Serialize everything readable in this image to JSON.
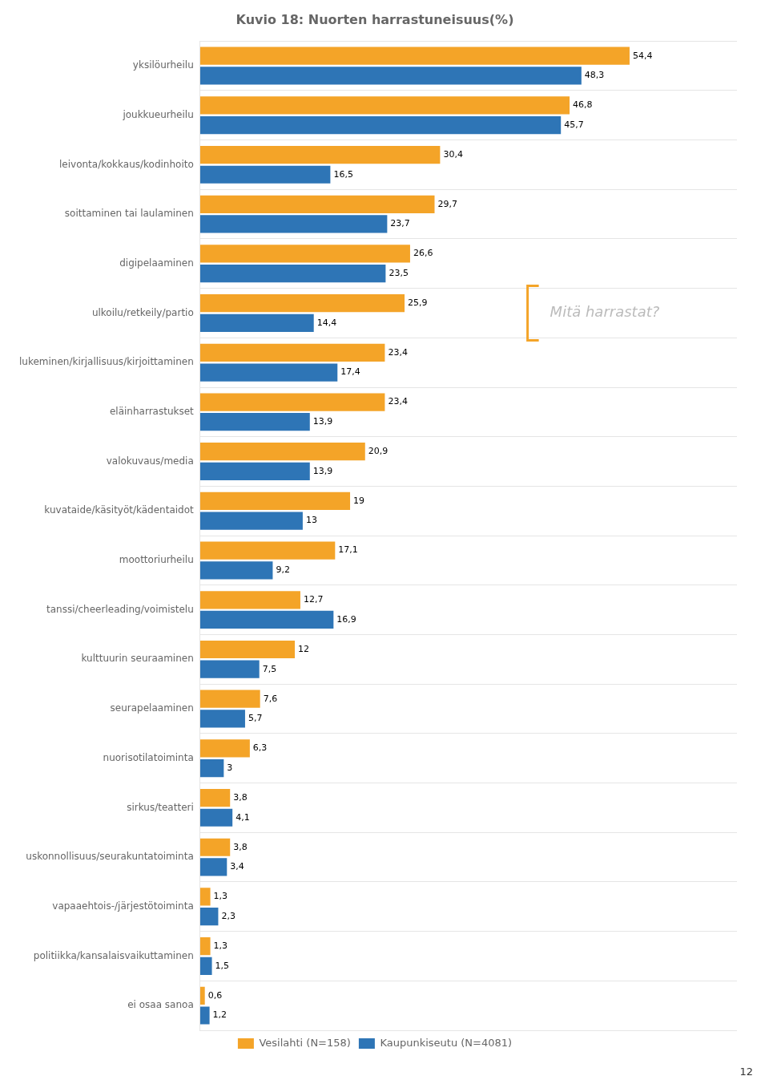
{
  "chart_data": {
    "type": "bar",
    "orientation": "horizontal",
    "title": "Kuvio 18: Nuorten harrastuneisuus(%)",
    "categories": [
      "yksilöurheilu",
      "joukkueurheilu",
      "leivonta/kokkaus/kodinhoito",
      "soittaminen tai laulaminen",
      "digipelaaminen",
      "ulkoilu/retkeily/partio",
      "lukeminen/kirjallisuus/kirjoittaminen",
      "eläinharrastukset",
      "valokuvaus/media",
      "kuvataide/käsityöt/kädentaidot",
      "moottoriurheilu",
      "tanssi/cheerleading/voimistelu",
      "kulttuurin seuraaminen",
      "seurapelaaminen",
      "nuorisotilatoiminta",
      "sirkus/teatteri",
      "uskonnollisuus/seurakuntatoiminta",
      "vapaaehtois-/järjestötoiminta",
      "politiikka/kansalaisvaikuttaminen",
      "ei osaa sanoa"
    ],
    "series": [
      {
        "name": "Vesilahti (N=158)",
        "color": "#F4A428",
        "values": [
          54.4,
          46.8,
          30.4,
          29.7,
          26.6,
          25.9,
          23.4,
          23.4,
          20.9,
          19.0,
          17.1,
          12.7,
          12.0,
          7.6,
          6.3,
          3.8,
          3.8,
          1.3,
          1.3,
          0.6
        ],
        "value_labels": [
          "54,4",
          "46,8",
          "30,4",
          "29,7",
          "26,6",
          "25,9",
          "23,4",
          "23,4",
          "20,9",
          "19",
          "17,1",
          "12,7",
          "12",
          "7,6",
          "6,3",
          "3,8",
          "3,8",
          "1,3",
          "1,3",
          "0,6"
        ]
      },
      {
        "name": "Kaupunkiseutu (N=4081)",
        "color": "#2E75B6",
        "values": [
          48.3,
          45.7,
          16.5,
          23.7,
          23.5,
          14.4,
          17.4,
          13.9,
          13.9,
          13.0,
          9.2,
          16.9,
          7.5,
          5.7,
          3.0,
          4.1,
          3.4,
          2.3,
          1.5,
          1.2
        ],
        "value_labels": [
          "48,3",
          "45,7",
          "16,5",
          "23,7",
          "23,5",
          "14,4",
          "17,4",
          "13,9",
          "13,9",
          "13",
          "9,2",
          "16,9",
          "7,5",
          "5,7",
          "3",
          "4,1",
          "3,4",
          "2,3",
          "1,5",
          "1,2"
        ]
      }
    ],
    "xlim": [
      0,
      68
    ],
    "tick_labels": "y",
    "grid": true,
    "legend": "bottom",
    "data_labels": true,
    "annotations": [
      {
        "text": "Mitä harrastat?",
        "category": "ulkoilu/retkeily/partio",
        "color": "#BBBBBB"
      }
    ],
    "page_number": "12"
  }
}
